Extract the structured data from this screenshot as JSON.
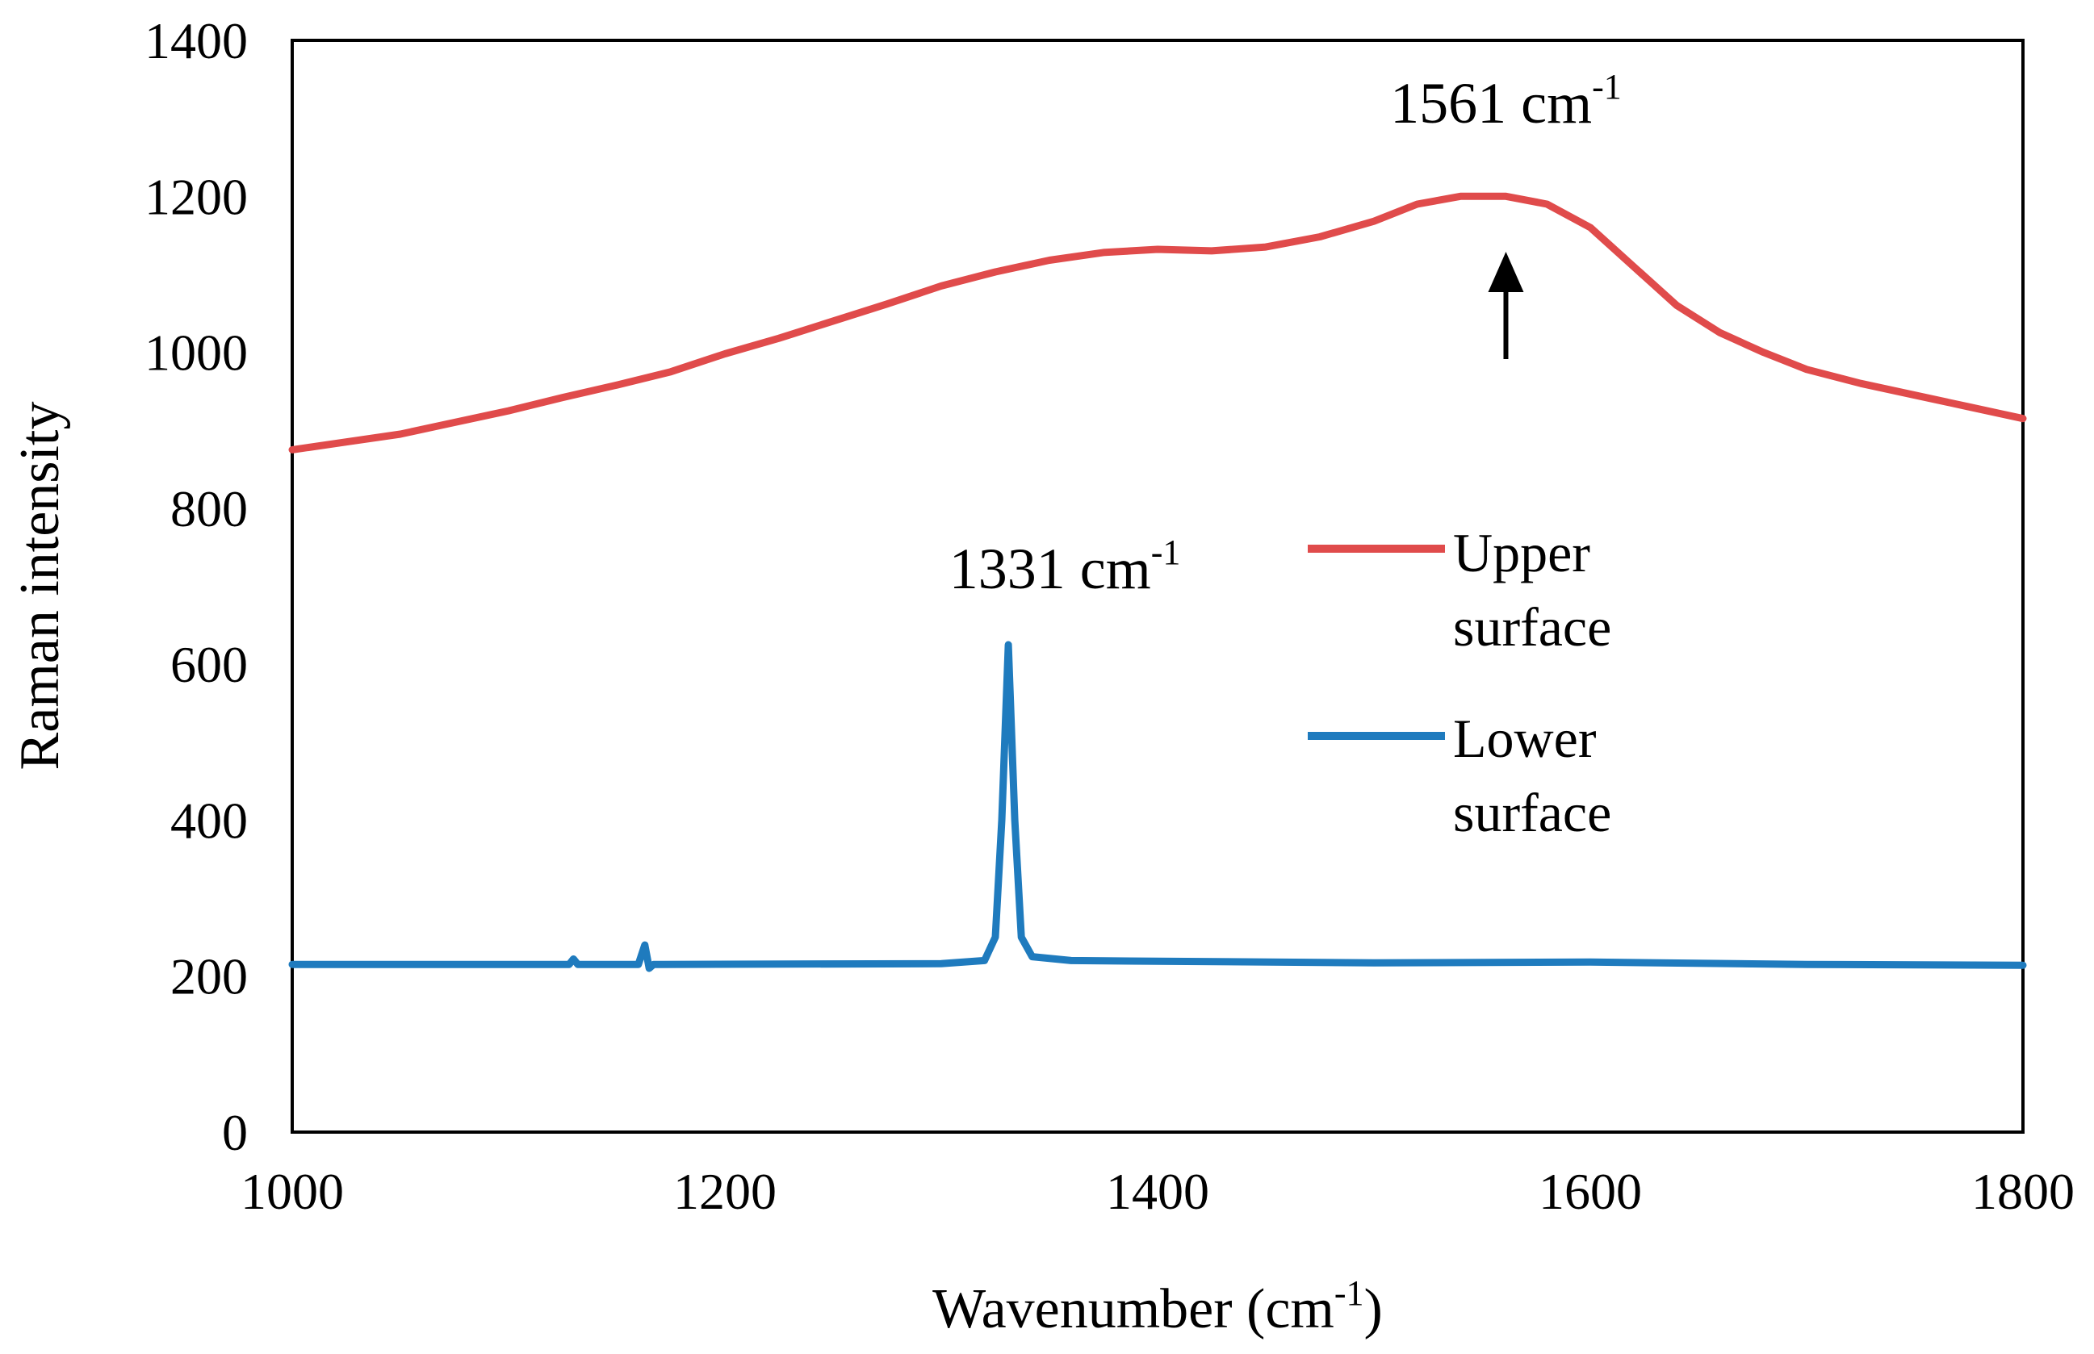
{
  "chart_data": {
    "type": "line",
    "title": "",
    "xlabel": "Wavenumber (cm",
    "xlabel_sup": "-1",
    "xlabel_tail": ")",
    "ylabel": "Raman intensity",
    "xlim": [
      1000,
      1800
    ],
    "ylim": [
      0,
      1400
    ],
    "xticks": [
      1000,
      1200,
      1400,
      1600,
      1800
    ],
    "yticks": [
      0,
      200,
      400,
      600,
      800,
      1000,
      1200,
      1400
    ],
    "grid": false,
    "legend_position": "right-middle",
    "series": [
      {
        "name": "Upper surface",
        "legend_line1": "Upper",
        "legend_line2": "surface",
        "color": "#E04B4B",
        "x": [
          1000,
          1025,
          1050,
          1075,
          1100,
          1125,
          1150,
          1175,
          1200,
          1225,
          1250,
          1275,
          1300,
          1325,
          1350,
          1375,
          1400,
          1425,
          1450,
          1475,
          1500,
          1520,
          1540,
          1561,
          1580,
          1600,
          1620,
          1640,
          1660,
          1680,
          1700,
          1725,
          1750,
          1775,
          1800
        ],
        "y": [
          875,
          885,
          895,
          910,
          925,
          942,
          958,
          975,
          998,
          1018,
          1040,
          1062,
          1085,
          1103,
          1118,
          1128,
          1132,
          1130,
          1135,
          1148,
          1168,
          1190,
          1200,
          1200,
          1190,
          1160,
          1110,
          1060,
          1025,
          1000,
          978,
          960,
          945,
          930,
          915
        ]
      },
      {
        "name": "Lower surface",
        "legend_line1": "Lower",
        "legend_line2": "surface",
        "color": "#1F7BBE",
        "x": [
          1000,
          1100,
          1128,
          1130,
          1132,
          1160,
          1163,
          1165,
          1167,
          1170,
          1300,
          1320,
          1325,
          1328,
          1331,
          1334,
          1337,
          1342,
          1360,
          1500,
          1600,
          1700,
          1800
        ],
        "y": [
          215,
          215,
          215,
          222,
          215,
          215,
          240,
          210,
          215,
          215,
          216,
          220,
          250,
          400,
          625,
          400,
          250,
          225,
          220,
          217,
          218,
          215,
          214
        ]
      }
    ],
    "annotations": [
      {
        "id": "peak-upper",
        "text": "1561 cm",
        "sup": "-1",
        "x": 1561,
        "y": 1200,
        "arrow": true
      },
      {
        "id": "peak-lower",
        "text": "1331 cm",
        "sup": "-1",
        "x": 1331,
        "y": 625,
        "arrow": false
      }
    ]
  }
}
